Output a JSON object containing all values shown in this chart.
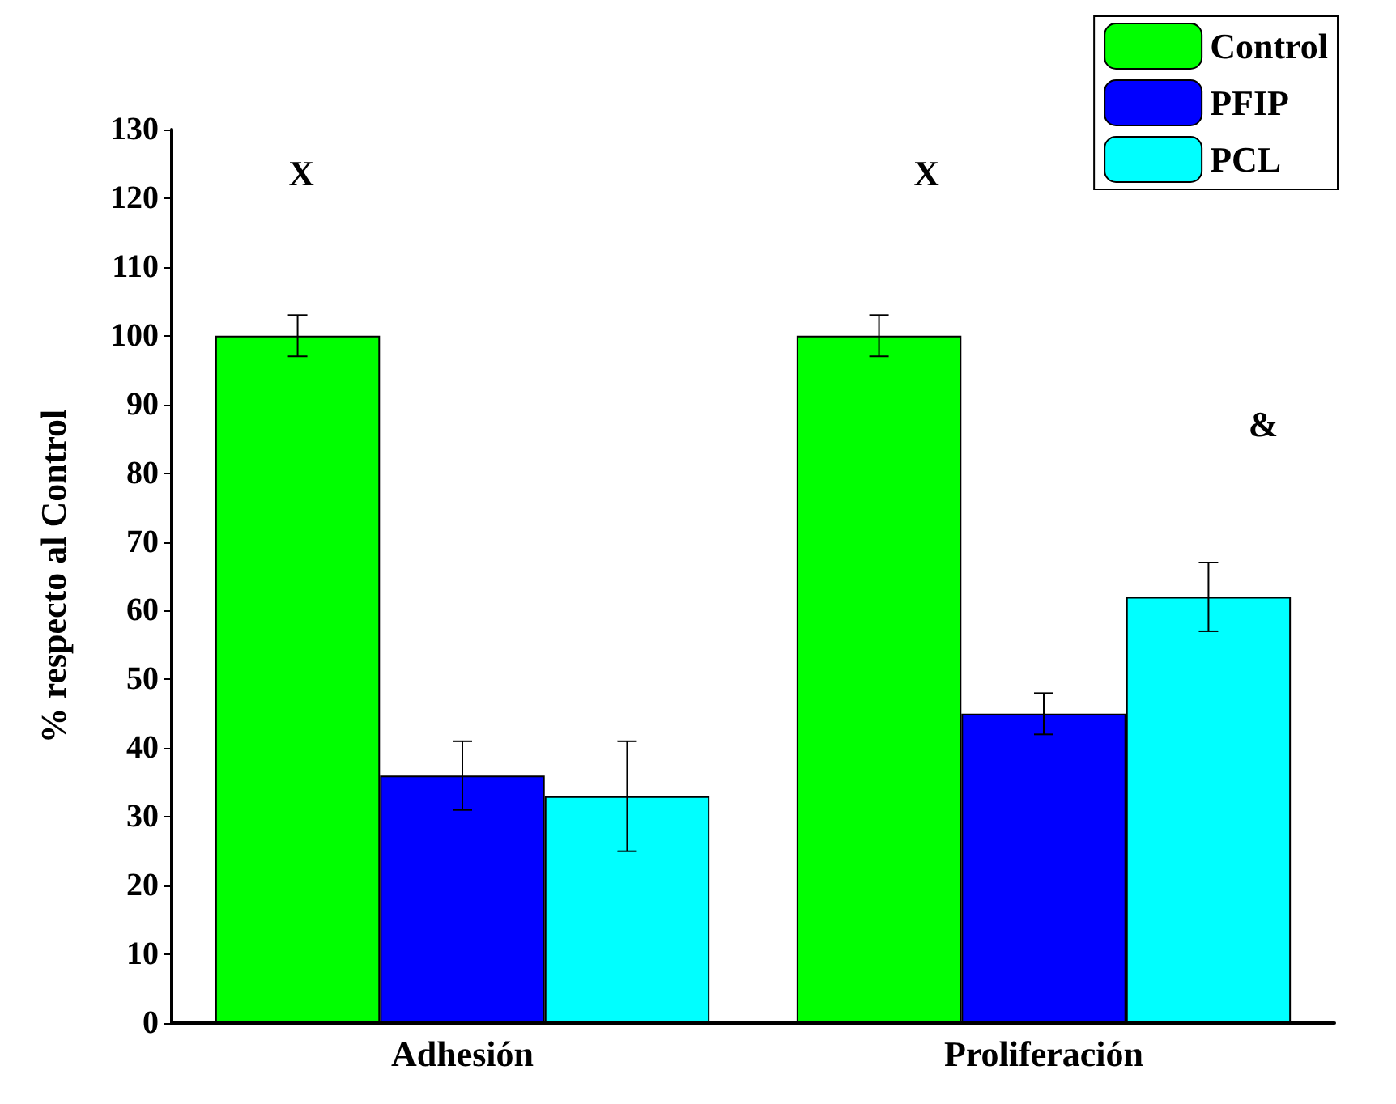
{
  "chart_data": {
    "type": "bar",
    "ylabel": "% respecto al Control",
    "categories": [
      "Adhesión",
      "Proliferación"
    ],
    "series": [
      {
        "name": "Control",
        "color": "#00ff00",
        "values": [
          100,
          100
        ],
        "errors": [
          3,
          3
        ]
      },
      {
        "name": "PFIP",
        "color": "#0000ff",
        "values": [
          36,
          45
        ],
        "errors": [
          5,
          3
        ]
      },
      {
        "name": "PCL",
        "color": "#00ffff",
        "values": [
          33,
          62
        ],
        "errors": [
          8,
          5
        ]
      }
    ],
    "ylim": [
      0,
      130
    ],
    "yticks": [
      0,
      10,
      20,
      30,
      40,
      50,
      60,
      70,
      80,
      90,
      100,
      110,
      120,
      130
    ],
    "grid": false,
    "legend": "top right",
    "annotations": [
      "X",
      "X",
      "&"
    ]
  }
}
